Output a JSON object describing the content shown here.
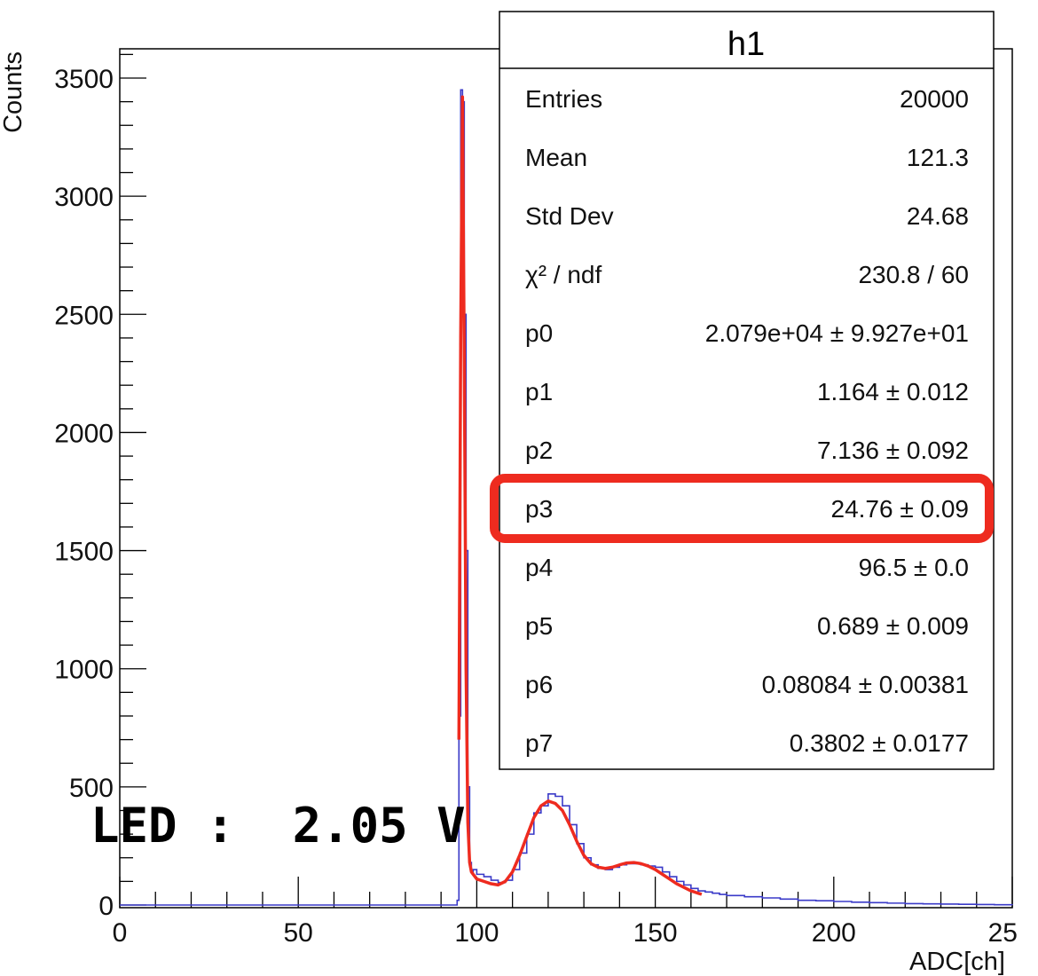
{
  "chart_data": {
    "type": "line",
    "xlabel": "ADC[ch]",
    "ylabel": "Counts",
    "xlim": [
      0,
      250
    ],
    "ylim": [
      0,
      3600
    ],
    "x_ticks": [
      "0",
      "50",
      "100",
      "150",
      "200",
      "25"
    ],
    "y_ticks": [
      "0",
      "500",
      "1000",
      "1500",
      "2000",
      "2500",
      "3000",
      "3500"
    ],
    "grid": false,
    "series": [
      {
        "kind": "histogram",
        "color": "#3a3ac8",
        "x": [
          94,
          94.5,
          95,
          95.5,
          96,
          96.5,
          97,
          97.5,
          98,
          98.5,
          99,
          100,
          102,
          104,
          106,
          108,
          110,
          112,
          114,
          116,
          118,
          120,
          122,
          124,
          126,
          128,
          130,
          132,
          134,
          136,
          138,
          140,
          142,
          144,
          146,
          148,
          150,
          152,
          154,
          156,
          158,
          160,
          162,
          164,
          166,
          168,
          170,
          175,
          180,
          185,
          190,
          195,
          200,
          205,
          210,
          215,
          220,
          225,
          230,
          235,
          240,
          245,
          250
        ],
        "y": [
          0,
          20,
          800,
          3450,
          3400,
          2500,
          1500,
          500,
          180,
          140,
          150,
          130,
          120,
          105,
          95,
          105,
          150,
          220,
          300,
          390,
          420,
          470,
          460,
          420,
          340,
          260,
          200,
          170,
          155,
          150,
          160,
          170,
          175,
          175,
          170,
          165,
          160,
          140,
          120,
          100,
          85,
          70,
          60,
          55,
          50,
          45,
          40,
          35,
          30,
          25,
          20,
          18,
          15,
          12,
          10,
          8,
          6,
          5,
          4,
          3,
          2,
          1,
          0
        ]
      },
      {
        "kind": "fit",
        "color": "#ee2b1f",
        "x": [
          95,
          95.5,
          96,
          96.5,
          97,
          97.5,
          98,
          98.5,
          99,
          100,
          102,
          104,
          106,
          108,
          110,
          112,
          114,
          116,
          118,
          120,
          122,
          124,
          126,
          128,
          130,
          132,
          134,
          136,
          138,
          140,
          142,
          144,
          146,
          148,
          150,
          152,
          154,
          156,
          158,
          160,
          162,
          163
        ],
        "y": [
          700,
          2400,
          3420,
          2300,
          1000,
          350,
          180,
          140,
          130,
          110,
          100,
          90,
          85,
          100,
          140,
          210,
          290,
          370,
          420,
          440,
          430,
          400,
          340,
          270,
          210,
          175,
          160,
          155,
          160,
          170,
          178,
          180,
          175,
          165,
          150,
          130,
          110,
          90,
          75,
          60,
          50,
          45
        ]
      }
    ]
  },
  "stats_box": {
    "title": "h1",
    "rows": [
      {
        "label": "Entries",
        "value": "20000"
      },
      {
        "label": "Mean",
        "value": "121.3"
      },
      {
        "label": "Std Dev",
        "value": "24.68"
      },
      {
        "label": "χ² / ndf",
        "value": "230.8 / 60"
      },
      {
        "label": "p0",
        "value": "2.079e+04 ± 9.927e+01"
      },
      {
        "label": "p1",
        "value": "1.164 ± 0.012"
      },
      {
        "label": "p2",
        "value": "7.136 ± 0.092"
      },
      {
        "label": "p3",
        "value": "24.76 ± 0.09"
      },
      {
        "label": "p4",
        "value": "96.5 ± 0.0"
      },
      {
        "label": "p5",
        "value": "0.689 ± 0.009"
      },
      {
        "label": "p6",
        "value": "0.08084 ± 0.00381"
      },
      {
        "label": "p7",
        "value": "0.3802 ± 0.0177"
      }
    ],
    "highlighted_row": "p3",
    "highlight_color": "#ee2b1f"
  },
  "annotation": {
    "text": "LED :  2.05 V"
  }
}
